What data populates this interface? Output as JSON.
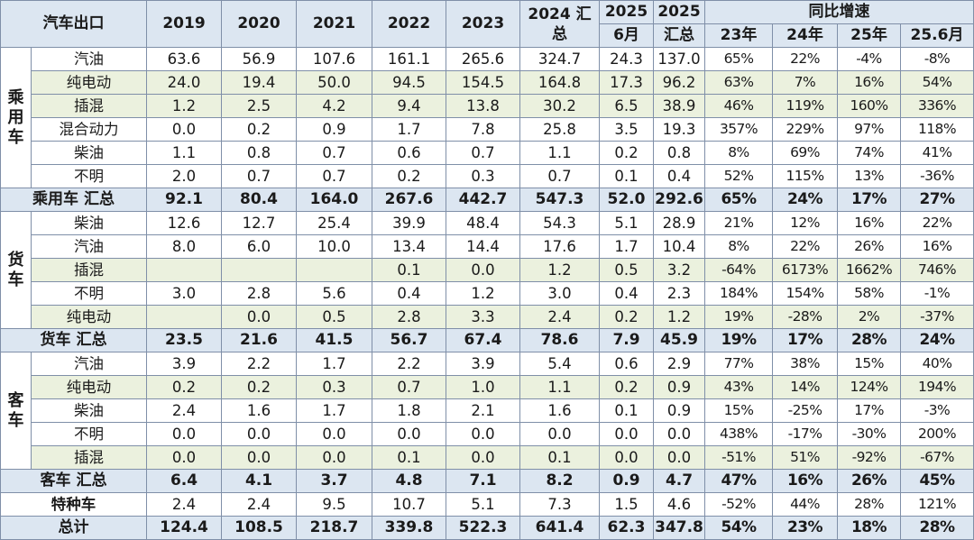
{
  "header": {
    "corner": "汽车出口",
    "years": [
      "2019",
      "2020",
      "2021",
      "2022",
      "2023"
    ],
    "y2024": "2024 汇总",
    "y2025a_top": "2025",
    "y2025a_bot": "6月",
    "y2025b_top": "2025",
    "y2025b_bot": "汇总",
    "yoy_title": "同比增速",
    "yoy_cols": [
      "23年",
      "24年",
      "25年",
      "25.6月"
    ]
  },
  "groups": [
    {
      "name": "乘用车",
      "rows": [
        {
          "label": "汽油",
          "shade": false,
          "values": [
            "63.6",
            "56.9",
            "107.6",
            "161.1",
            "265.6",
            "324.7",
            "24.3",
            "137.0"
          ],
          "yoy": [
            "65%",
            "22%",
            "-4%",
            "-8%"
          ]
        },
        {
          "label": "纯电动",
          "shade": true,
          "values": [
            "24.0",
            "19.4",
            "50.0",
            "94.5",
            "154.5",
            "164.8",
            "17.3",
            "96.2"
          ],
          "yoy": [
            "63%",
            "7%",
            "16%",
            "54%"
          ]
        },
        {
          "label": "插混",
          "shade": true,
          "values": [
            "1.2",
            "2.5",
            "4.2",
            "9.4",
            "13.8",
            "30.2",
            "6.5",
            "38.9"
          ],
          "yoy": [
            "46%",
            "119%",
            "160%",
            "336%"
          ]
        },
        {
          "label": "混合动力",
          "shade": false,
          "values": [
            "0.0",
            "0.2",
            "0.9",
            "1.7",
            "7.8",
            "25.8",
            "3.5",
            "19.3"
          ],
          "yoy": [
            "357%",
            "229%",
            "97%",
            "118%"
          ]
        },
        {
          "label": "柴油",
          "shade": false,
          "values": [
            "1.1",
            "0.8",
            "0.7",
            "0.6",
            "0.7",
            "1.1",
            "0.2",
            "0.8"
          ],
          "yoy": [
            "8%",
            "69%",
            "74%",
            "41%"
          ]
        },
        {
          "label": "不明",
          "shade": false,
          "values": [
            "2.0",
            "0.7",
            "0.7",
            "0.2",
            "0.3",
            "0.7",
            "0.1",
            "0.4"
          ],
          "yoy": [
            "52%",
            "115%",
            "13%",
            "-36%"
          ]
        }
      ],
      "subtotal": {
        "label": "乘用车 汇总",
        "values": [
          "92.1",
          "80.4",
          "164.0",
          "267.6",
          "442.7",
          "547.3",
          "52.0",
          "292.6"
        ],
        "yoy": [
          "65%",
          "24%",
          "17%",
          "27%"
        ]
      }
    },
    {
      "name": "货车",
      "rows": [
        {
          "label": "柴油",
          "shade": false,
          "values": [
            "12.6",
            "12.7",
            "25.4",
            "39.9",
            "48.4",
            "54.3",
            "5.1",
            "28.9"
          ],
          "yoy": [
            "21%",
            "12%",
            "16%",
            "22%"
          ]
        },
        {
          "label": "汽油",
          "shade": false,
          "values": [
            "8.0",
            "6.0",
            "10.0",
            "13.4",
            "14.4",
            "17.6",
            "1.7",
            "10.4"
          ],
          "yoy": [
            "8%",
            "22%",
            "26%",
            "16%"
          ]
        },
        {
          "label": "插混",
          "shade": true,
          "values": [
            "",
            "",
            "",
            "0.1",
            "0.0",
            "1.2",
            "0.5",
            "3.2"
          ],
          "yoy": [
            "-64%",
            "6173%",
            "1662%",
            "746%"
          ]
        },
        {
          "label": "不明",
          "shade": false,
          "values": [
            "3.0",
            "2.8",
            "5.6",
            "0.4",
            "1.2",
            "3.0",
            "0.4",
            "2.3"
          ],
          "yoy": [
            "184%",
            "154%",
            "58%",
            "-1%"
          ]
        },
        {
          "label": "纯电动",
          "shade": true,
          "values": [
            "",
            "0.0",
            "0.5",
            "2.8",
            "3.3",
            "2.4",
            "0.2",
            "1.2"
          ],
          "yoy": [
            "19%",
            "-28%",
            "2%",
            "-37%"
          ]
        }
      ],
      "subtotal": {
        "label": "货车 汇总",
        "values": [
          "23.5",
          "21.6",
          "41.5",
          "56.7",
          "67.4",
          "78.6",
          "7.9",
          "45.9"
        ],
        "yoy": [
          "19%",
          "17%",
          "28%",
          "24%"
        ]
      }
    },
    {
      "name": "客车",
      "rows": [
        {
          "label": "汽油",
          "shade": false,
          "values": [
            "3.9",
            "2.2",
            "1.7",
            "2.2",
            "3.9",
            "5.4",
            "0.6",
            "2.9"
          ],
          "yoy": [
            "77%",
            "38%",
            "15%",
            "40%"
          ]
        },
        {
          "label": "纯电动",
          "shade": true,
          "values": [
            "0.2",
            "0.2",
            "0.3",
            "0.7",
            "1.0",
            "1.1",
            "0.2",
            "0.9"
          ],
          "yoy": [
            "43%",
            "14%",
            "124%",
            "194%"
          ]
        },
        {
          "label": "柴油",
          "shade": false,
          "values": [
            "2.4",
            "1.6",
            "1.7",
            "1.8",
            "2.1",
            "1.6",
            "0.1",
            "0.9"
          ],
          "yoy": [
            "15%",
            "-25%",
            "17%",
            "-3%"
          ]
        },
        {
          "label": "不明",
          "shade": false,
          "values": [
            "0.0",
            "0.0",
            "0.0",
            "0.0",
            "0.0",
            "0.0",
            "0.0",
            "0.0"
          ],
          "yoy": [
            "438%",
            "-17%",
            "-30%",
            "200%"
          ]
        },
        {
          "label": "插混",
          "shade": true,
          "values": [
            "0.0",
            "0.0",
            "0.0",
            "0.1",
            "0.0",
            "0.1",
            "0.0",
            "0.0"
          ],
          "yoy": [
            "-51%",
            "51%",
            "-92%",
            "-67%"
          ]
        }
      ],
      "subtotal": {
        "label": "客车 汇总",
        "values": [
          "6.4",
          "4.1",
          "3.7",
          "4.8",
          "7.1",
          "8.2",
          "0.9",
          "4.7"
        ],
        "yoy": [
          "47%",
          "16%",
          "26%",
          "45%"
        ]
      }
    }
  ],
  "special": {
    "label": "特种车",
    "values": [
      "2.4",
      "2.4",
      "9.5",
      "10.7",
      "5.1",
      "7.3",
      "1.5",
      "4.6"
    ],
    "yoy": [
      "-52%",
      "44%",
      "28%",
      "121%"
    ]
  },
  "total": {
    "label": "总计",
    "values": [
      "124.4",
      "108.5",
      "218.7",
      "339.8",
      "522.3",
      "641.4",
      "62.3",
      "347.8"
    ],
    "yoy": [
      "54%",
      "23%",
      "18%",
      "28%"
    ]
  },
  "colors": {
    "header_bg": "#dce6f1",
    "shade_bg": "#ebf1de",
    "border": "#7f8fa8"
  }
}
